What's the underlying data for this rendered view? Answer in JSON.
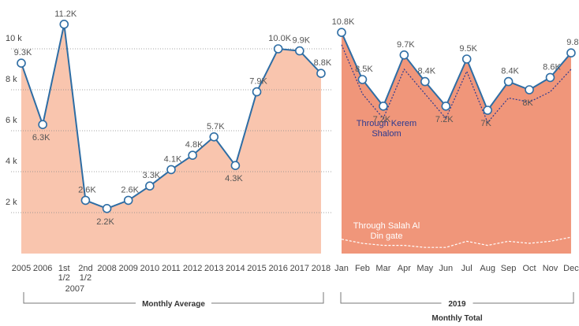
{
  "chart_data": [
    {
      "type": "area",
      "categories": [
        "2005",
        "2006",
        "1st 1/2",
        "2nd 1/2",
        "2008",
        "2009",
        "2010",
        "2011",
        "2012",
        "2013",
        "2014",
        "2015",
        "2016",
        "2017",
        "2018"
      ],
      "category_group": "2007",
      "values": [
        9.3,
        6.3,
        11.2,
        2.6,
        2.2,
        2.6,
        3.3,
        4.1,
        4.8,
        5.7,
        4.3,
        7.9,
        10.0,
        9.9,
        8.8
      ],
      "value_labels": [
        "9.3K",
        "6.3K",
        "11.2K",
        "2.6K",
        "2.2K",
        "2.6K",
        "3.3K",
        "4.1K",
        "4.8K",
        "5.7K",
        "4.3K",
        "7.9K",
        "10.0K",
        "9.9K",
        "8.8K"
      ],
      "color": "#f9c5ae",
      "line_color": "#2e6da4",
      "ylim": [
        0,
        12
      ],
      "yticks": [
        {
          "value": 2,
          "label": "2 k"
        },
        {
          "value": 4,
          "label": "4 k"
        },
        {
          "value": 6,
          "label": "6 k"
        },
        {
          "value": 8,
          "label": "8 k"
        },
        {
          "value": 10,
          "label": "10 k"
        }
      ],
      "grid": true,
      "x_label": "Monthly Average"
    },
    {
      "type": "area",
      "categories": [
        "Jan",
        "Feb",
        "Mar",
        "Apr",
        "May",
        "Jun",
        "Jul",
        "Aug",
        "Sep",
        "Oct",
        "Nov",
        "Dec"
      ],
      "category_group": "2019",
      "values": [
        10.8,
        8.5,
        7.2,
        9.7,
        8.4,
        7.2,
        9.5,
        7.0,
        8.4,
        8.0,
        8.6,
        9.8
      ],
      "value_labels": [
        "10.8K",
        "8.5K",
        "7.2K",
        "9.7K",
        "8.4K",
        "7.2K",
        "9.5K",
        "7K",
        "8.4K",
        "8K",
        "8.6K",
        "9.8"
      ],
      "color": "#f0967a",
      "line_color": "#2e6da4",
      "ylim": [
        0,
        12
      ],
      "series": [
        {
          "name": "Through Kerem Shalom",
          "color": "#2b3990",
          "values": [
            10.2,
            7.8,
            6.6,
            9.0,
            7.8,
            6.6,
            8.9,
            6.4,
            7.6,
            7.4,
            7.9,
            9.0
          ]
        },
        {
          "name": "Through Salah Al Din gate",
          "color": "#ffffff",
          "values": [
            0.7,
            0.5,
            0.4,
            0.4,
            0.3,
            0.3,
            0.6,
            0.4,
            0.6,
            0.5,
            0.6,
            0.8
          ]
        }
      ],
      "x_label": "Monthly Total"
    }
  ]
}
